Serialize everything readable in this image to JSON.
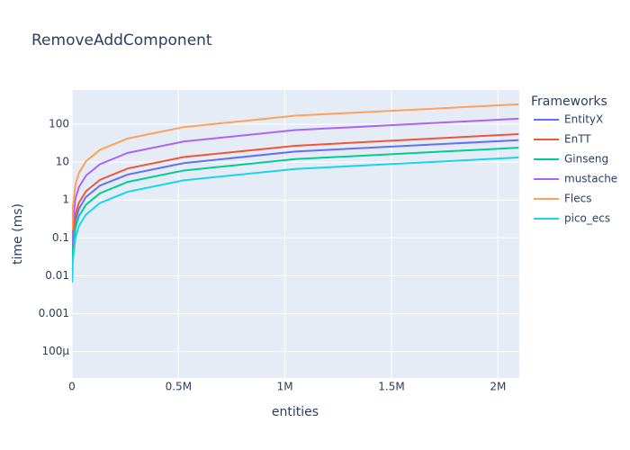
{
  "chart_data": {
    "type": "line",
    "title": "RemoveAddComponent",
    "x_label": "entities",
    "y_label": "time (ms)",
    "legend_title": "Frameworks",
    "x": [
      1024,
      4096,
      16384,
      32768,
      65536,
      131072,
      262144,
      524288,
      1048576,
      2097152
    ],
    "series": [
      {
        "name": "EntityX",
        "color": "#636efa",
        "values": [
          0.018,
          0.074,
          0.29,
          0.59,
          1.2,
          2.4,
          4.7,
          9.4,
          19,
          38
        ]
      },
      {
        "name": "EnTT",
        "color": "#EF553B",
        "values": [
          0.027,
          0.11,
          0.43,
          0.85,
          1.7,
          3.4,
          6.8,
          13.6,
          27,
          55
        ]
      },
      {
        "name": "Ginseng",
        "color": "#00cc96",
        "values": [
          0.012,
          0.047,
          0.19,
          0.38,
          0.75,
          1.5,
          3,
          6,
          12,
          24
        ]
      },
      {
        "name": "mustache",
        "color": "#ab63fa",
        "values": [
          0.069,
          0.27,
          1.1,
          2.2,
          4.4,
          8.8,
          17.5,
          35,
          70,
          140
        ]
      },
      {
        "name": "Flecs",
        "color": "#FFA15A",
        "values": [
          0.16,
          0.66,
          2.6,
          5.2,
          10.5,
          21,
          42,
          84,
          168,
          335
        ]
      },
      {
        "name": "pico_ecs",
        "color": "#19d3f3",
        "values": [
          0.0065,
          0.026,
          0.1,
          0.21,
          0.41,
          0.83,
          1.65,
          3.3,
          6.6,
          13.2
        ]
      }
    ],
    "xlim": [
      0,
      2100000
    ],
    "xticks": [
      0,
      {
        "value": 500000,
        "label": "0.5M"
      },
      {
        "value": 1000000,
        "label": "1M"
      },
      {
        "value": 1500000,
        "label": "1.5M"
      },
      {
        "value": 2000000,
        "label": "2M"
      }
    ],
    "ylim": [
      2e-05,
      800
    ],
    "y_scale": "log",
    "yticks": [
      {
        "value": 0.0001,
        "label": "100µ"
      },
      0.001,
      0.01,
      0.1,
      1,
      10,
      100
    ],
    "grid": true
  }
}
